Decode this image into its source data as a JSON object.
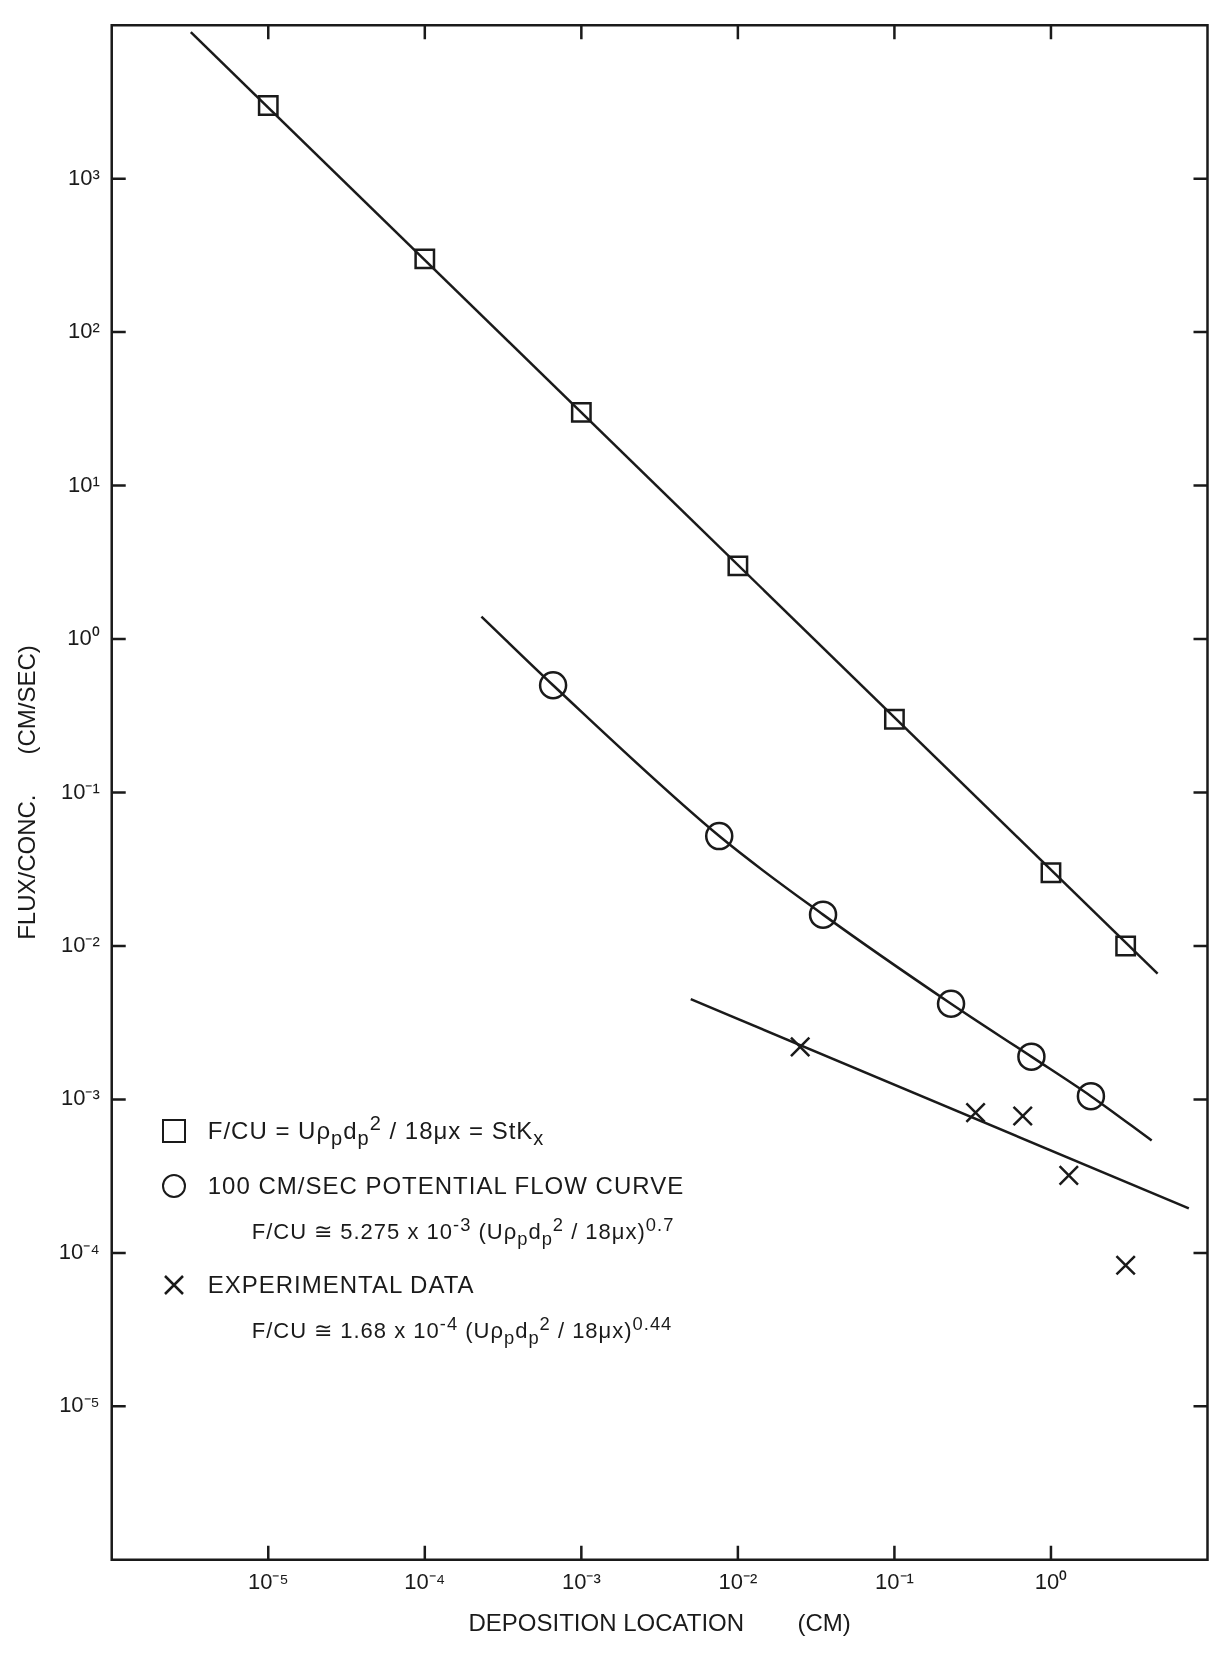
{
  "chart_data": {
    "type": "scatter",
    "xlabel": "DEPOSITION LOCATION        (CM)",
    "ylabel": "FLUX/CONC.      (CM/SEC)",
    "log": "xy",
    "grid": false,
    "legend": "bottom left",
    "xlim": [
      1e-06,
      10
    ],
    "ylim": [
      1e-06,
      10000
    ],
    "xticks": [
      {
        "value": 1e-05,
        "label": "10⁻⁵"
      },
      {
        "value": 0.0001,
        "label": "10⁻⁴"
      },
      {
        "value": 0.001,
        "label": "10⁻³"
      },
      {
        "value": 0.01,
        "label": "10⁻²"
      },
      {
        "value": 0.1,
        "label": "10⁻¹"
      },
      {
        "value": 1,
        "label": "10⁰"
      }
    ],
    "yticks": [
      {
        "value": 1e-05,
        "label": "10⁻⁵"
      },
      {
        "value": 0.0001,
        "label": "10⁻⁴"
      },
      {
        "value": 0.001,
        "label": "10⁻³"
      },
      {
        "value": 0.01,
        "label": "10⁻²"
      },
      {
        "value": 0.1,
        "label": "10⁻¹"
      },
      {
        "value": 1,
        "label": "10⁰"
      },
      {
        "value": 10,
        "label": "10¹"
      },
      {
        "value": 100,
        "label": "10²"
      },
      {
        "value": 1000,
        "label": "10³"
      }
    ],
    "series": [
      {
        "type": "line",
        "color": "#1a1a1a",
        "marker": "none",
        "x": [
          3.2e-06,
          4.8
        ],
        "values": [
          9000,
          0.0066
        ]
      },
      {
        "type": "scatter",
        "name": "F/CU = Uρ$_{p}$d$_{p}$$^{2}$ / 18μx = StK$_{x}$",
        "color": "#1a1a1a",
        "marker": "square",
        "x": [
          1e-05,
          0.0001,
          0.001,
          0.01,
          0.1,
          1,
          3
        ],
        "values": [
          3000,
          300,
          30,
          3,
          0.3,
          0.03,
          0.01
        ]
      },
      {
        "type": "line",
        "color": "#1a1a1a",
        "marker": "none",
        "x": [
          0.00023,
          0.00066,
          0.0076,
          0.035,
          0.23,
          0.75,
          1.8,
          4.4
        ],
        "values": [
          1.4,
          0.5,
          0.052,
          0.016,
          0.0042,
          0.0019,
          0.00105,
          0.00054
        ]
      },
      {
        "type": "scatter",
        "name": "100 CM/SEC POTENTIAL FLOW CURVE",
        "color": "#1a1a1a",
        "marker": "circle",
        "x": [
          0.00066,
          0.0076,
          0.035,
          0.23,
          0.75,
          1.8
        ],
        "values": [
          0.5,
          0.052,
          0.016,
          0.0042,
          0.0019,
          0.00105
        ]
      },
      {
        "type": "line",
        "color": "#1a1a1a",
        "marker": "none",
        "x": [
          0.005,
          7.6
        ],
        "values": [
          0.0045,
          0.000195
        ]
      },
      {
        "type": "scatter",
        "name": "EXPERIMENTAL DATA",
        "color": "#1a1a1a",
        "marker": "cross",
        "x": [
          0.025,
          0.33,
          0.66,
          1.3,
          3.0
        ],
        "values": [
          0.0022,
          0.00082,
          0.00078,
          0.00032,
          8.3e-05
        ]
      }
    ],
    "annotations": [
      "F/CU ≅ 5.275 x 10$^{-3}$ (Uρ$_{p}$d$_{p}$$^{2}$ / 18μx)$^{0.7}$",
      "F/CU ≅ 1.68 x 10$^{-4}$ (Uρ$_{p}$d$_{p}$$^{2}$ / 18μx)$^{0.44}$"
    ]
  }
}
